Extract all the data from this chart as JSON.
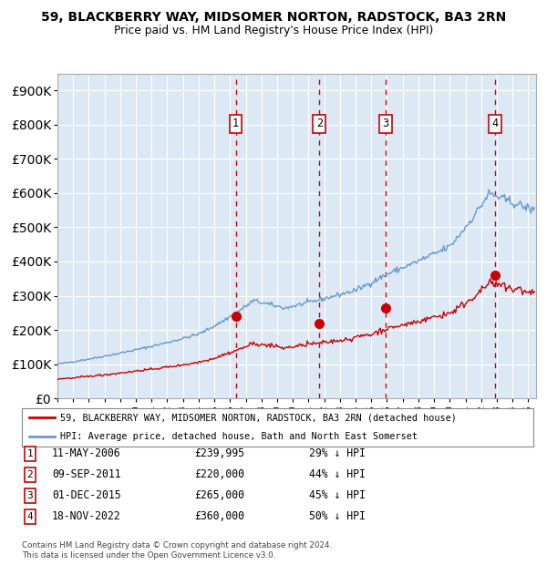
{
  "title_line1": "59, BLACKBERRY WAY, MIDSOMER NORTON, RADSTOCK, BA3 2RN",
  "title_line2": "Price paid vs. HM Land Registry's House Price Index (HPI)",
  "legend_label_red": "59, BLACKBERRY WAY, MIDSOMER NORTON, RADSTOCK, BA3 2RN (detached house)",
  "legend_label_blue": "HPI: Average price, detached house, Bath and North East Somerset",
  "footnote": "Contains HM Land Registry data © Crown copyright and database right 2024.\nThis data is licensed under the Open Government Licence v3.0.",
  "transactions": [
    {
      "num": 1,
      "date": "11-MAY-2006",
      "price": 239995,
      "pct": "29%",
      "dir": "↓",
      "x_year": 2006.36
    },
    {
      "num": 2,
      "date": "09-SEP-2011",
      "price": 220000,
      "pct": "44%",
      "dir": "↓",
      "x_year": 2011.69
    },
    {
      "num": 3,
      "date": "01-DEC-2015",
      "price": 265000,
      "pct": "45%",
      "dir": "↓",
      "x_year": 2015.92
    },
    {
      "num": 4,
      "date": "18-NOV-2022",
      "price": 360000,
      "pct": "50%",
      "dir": "↓",
      "x_year": 2022.88
    }
  ],
  "ylim": [
    0,
    950000
  ],
  "xlim_start": 1995.0,
  "xlim_end": 2025.5,
  "bg_color": "#dce9f5",
  "grid_color": "#ffffff",
  "red_line_color": "#cc0000",
  "blue_line_color": "#6699cc",
  "dashed_color": "#cc0000",
  "marker_color": "#cc0000"
}
